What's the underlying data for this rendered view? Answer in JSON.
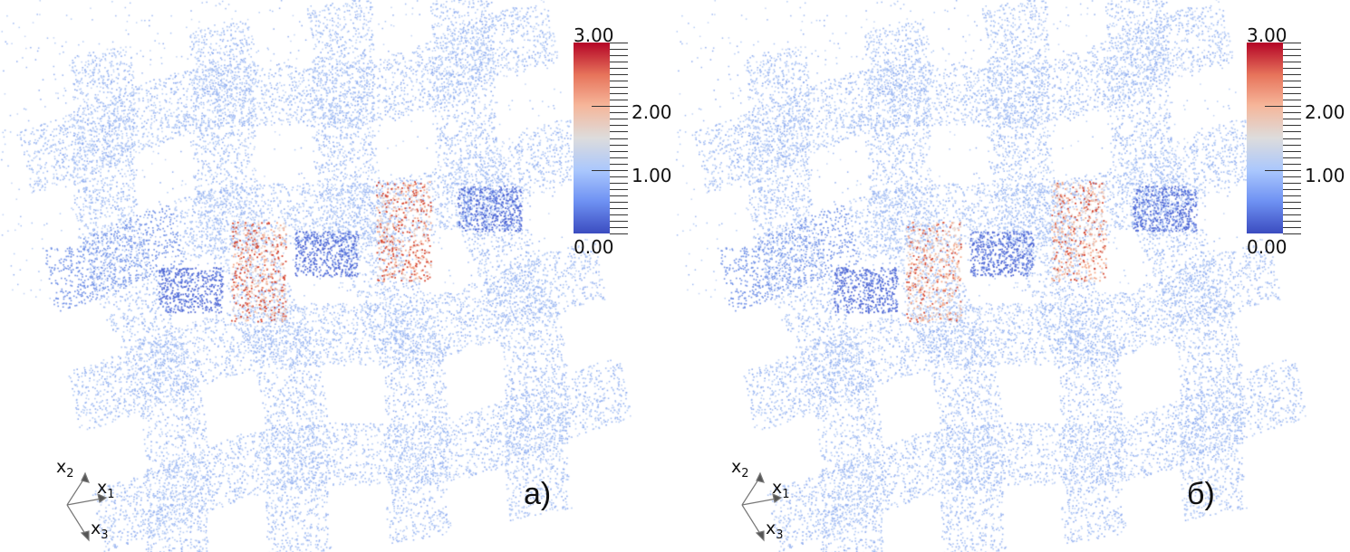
{
  "panels": [
    {
      "label": "а)",
      "colorbar": {
        "max": "3.00",
        "mid2": "2.00",
        "mid1": "1.00",
        "min": "0.00"
      },
      "axes": [
        "x",
        "x",
        "x"
      ],
      "axis_subs": [
        "2",
        "1",
        "3"
      ]
    },
    {
      "label": "б)",
      "colorbar": {
        "max": "3.00",
        "mid2": "2.00",
        "mid1": "1.00",
        "min": "0.00"
      },
      "axes": [
        "x",
        "x",
        "x"
      ],
      "axis_subs": [
        "2",
        "1",
        "3"
      ]
    }
  ],
  "colormap": {
    "name": "coolwarm",
    "low": "#3b4cc0",
    "mid": "#dddcdc",
    "high": "#b40426"
  },
  "colorbar_range": [
    0,
    3
  ]
}
